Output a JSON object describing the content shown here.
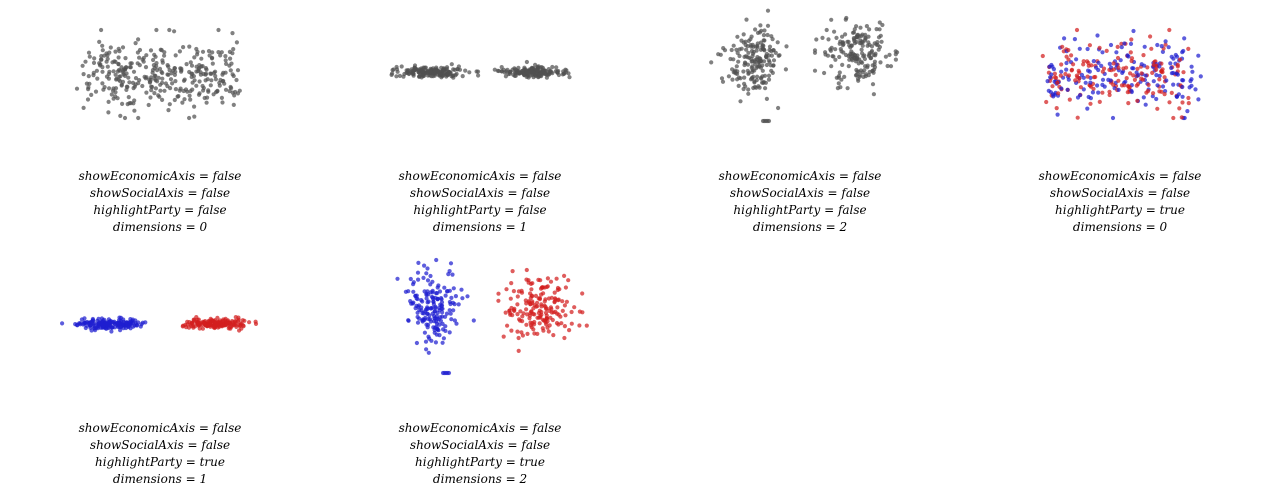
{
  "colors": {
    "neutral": "#505050",
    "party_a": "#1f1fd0",
    "party_b": "#d21f1f"
  },
  "panels": [
    {
      "caption": [
        "showEconomicAxis = false",
        "showSocialAxis = false",
        "highlightParty = false",
        "dimensions = 0"
      ],
      "highlight_party": false,
      "dimensions": 0
    },
    {
      "caption": [
        "showEconomicAxis = false",
        "showSocialAxis = false",
        "highlightParty = false",
        "dimensions = 1"
      ],
      "highlight_party": false,
      "dimensions": 1
    },
    {
      "caption": [
        "showEconomicAxis = false",
        "showSocialAxis = false",
        "highlightParty = false",
        "dimensions = 2"
      ],
      "highlight_party": false,
      "dimensions": 2
    },
    {
      "caption": [
        "showEconomicAxis = false",
        "showSocialAxis = false",
        "highlightParty = true",
        "dimensions = 0"
      ],
      "highlight_party": true,
      "dimensions": 0
    },
    {
      "caption": [
        "showEconomicAxis = false",
        "showSocialAxis = false",
        "highlightParty = true",
        "dimensions = 1"
      ],
      "highlight_party": true,
      "dimensions": 1
    },
    {
      "caption": [
        "showEconomicAxis = false",
        "showSocialAxis = false",
        "highlightParty = true",
        "dimensions = 2"
      ],
      "highlight_party": true,
      "dimensions": 2
    }
  ]
}
